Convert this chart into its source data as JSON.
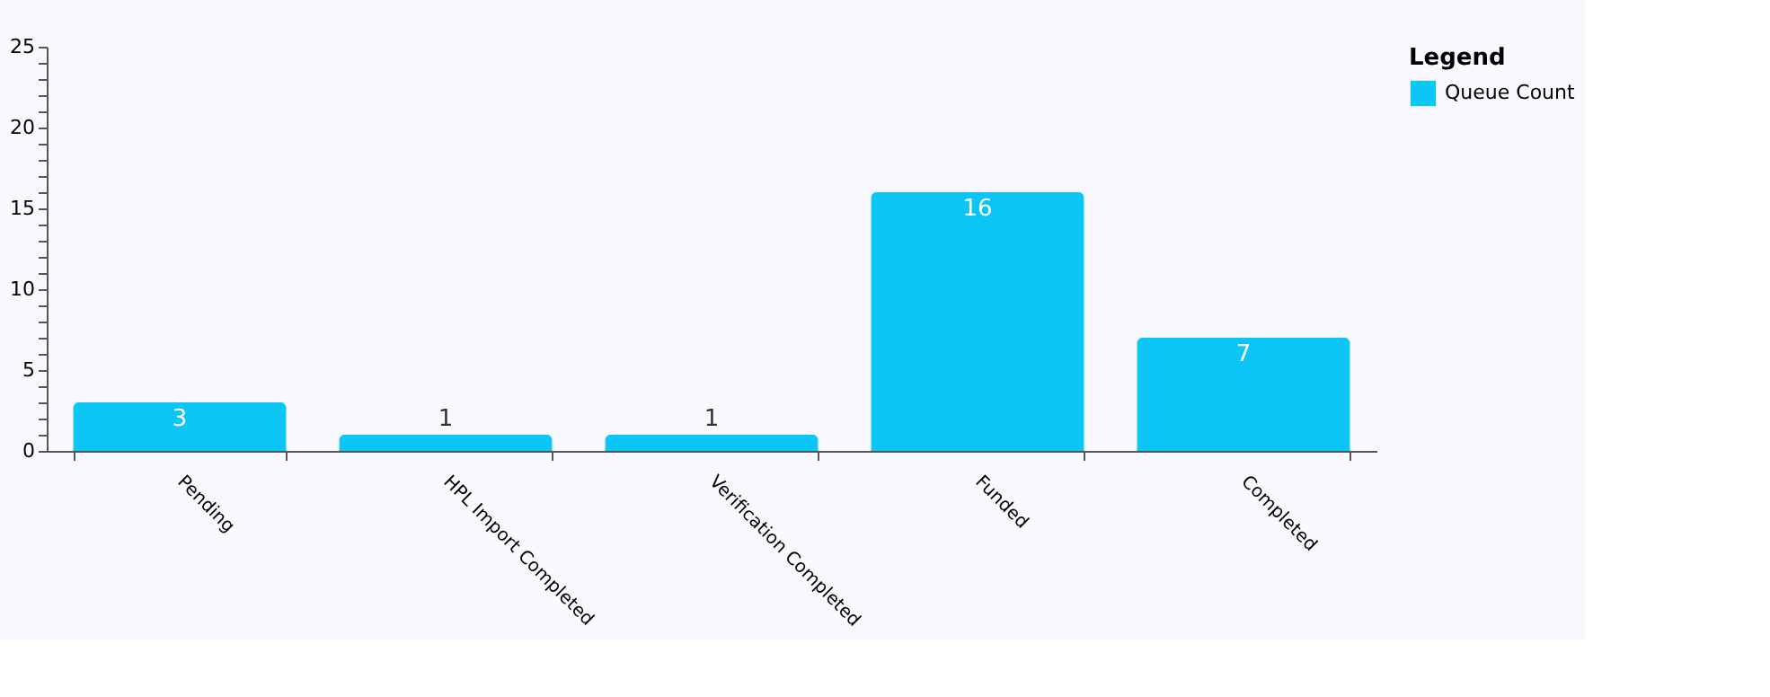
{
  "chart_data": {
    "type": "bar",
    "legend_title": "Legend",
    "categories": [
      "Pending",
      "HPL Import Completed",
      "Verification Completed",
      "Funded",
      "Completed"
    ],
    "series": [
      {
        "name": "Queue Count",
        "color": "#0bc5f5",
        "values": [
          3,
          1,
          1,
          16,
          7
        ]
      }
    ],
    "ylim": [
      0,
      25
    ],
    "yticks": [
      0,
      {
        "value": 1,
        "label": null
      },
      {
        "value": 2,
        "label": null
      },
      {
        "value": 3,
        "label": null
      },
      {
        "value": 4,
        "label": null
      },
      5,
      {
        "value": 6,
        "label": null
      },
      {
        "value": 7,
        "label": null
      },
      {
        "value": 8,
        "label": null
      },
      {
        "value": 9,
        "label": null
      },
      10,
      {
        "value": 11,
        "label": null
      },
      {
        "value": 12,
        "label": null
      },
      {
        "value": 13,
        "label": null
      },
      {
        "value": 14,
        "label": null
      },
      15,
      {
        "value": 16,
        "label": null
      },
      {
        "value": 17,
        "label": null
      },
      {
        "value": 18,
        "label": null
      },
      {
        "value": 19,
        "label": null
      },
      20,
      {
        "value": 21,
        "label": null
      },
      {
        "value": 22,
        "label": null
      },
      {
        "value": 23,
        "label": null
      },
      {
        "value": 24,
        "label": null
      },
      25
    ],
    "grid": false,
    "legend": "top right",
    "data_labels": true
  }
}
